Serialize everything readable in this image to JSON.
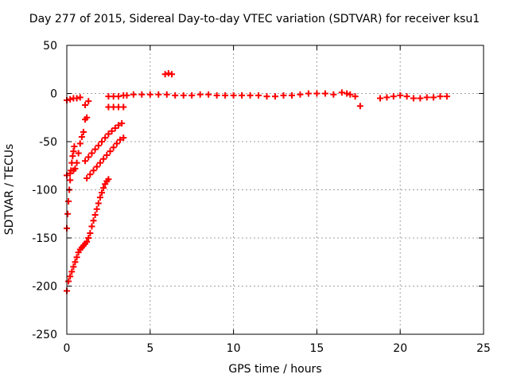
{
  "chart_data": {
    "type": "scatter",
    "title": "Day 277 of 2015, Sidereal Day-to-day VTEC variation (SDTVAR) for receiver ksu1",
    "xlabel": "GPS time / hours",
    "ylabel": "SDTVAR / TECUs",
    "xlim": [
      0,
      25
    ],
    "ylim": [
      -250,
      50
    ],
    "xticks": [
      0,
      5,
      10,
      15,
      20,
      25
    ],
    "yticks": [
      -250,
      -200,
      -150,
      -100,
      -50,
      0,
      50
    ],
    "grid": true,
    "marker": "+",
    "color": "#ff0000",
    "series": [
      {
        "points": [
          [
            0.0,
            -205
          ],
          [
            0.1,
            -195
          ],
          [
            0.2,
            -190
          ],
          [
            0.3,
            -185
          ],
          [
            0.4,
            -180
          ],
          [
            0.5,
            -175
          ],
          [
            0.6,
            -170
          ],
          [
            0.7,
            -165
          ],
          [
            0.8,
            -162
          ],
          [
            0.9,
            -160
          ],
          [
            1.0,
            -158
          ],
          [
            1.1,
            -156
          ],
          [
            1.2,
            -154
          ],
          [
            1.3,
            -150
          ],
          [
            1.4,
            -145
          ],
          [
            1.5,
            -138
          ],
          [
            1.6,
            -132
          ],
          [
            1.7,
            -126
          ],
          [
            1.8,
            -120
          ],
          [
            1.9,
            -114
          ],
          [
            2.0,
            -108
          ],
          [
            2.1,
            -103
          ],
          [
            2.2,
            -98
          ],
          [
            2.3,
            -94
          ],
          [
            2.4,
            -91
          ],
          [
            2.5,
            -89
          ],
          [
            0.0,
            -140
          ],
          [
            0.05,
            -125
          ],
          [
            0.1,
            -112
          ],
          [
            0.15,
            -100
          ],
          [
            0.2,
            -90
          ],
          [
            0.25,
            -80
          ],
          [
            0.3,
            -72
          ],
          [
            0.35,
            -65
          ],
          [
            0.4,
            -60
          ],
          [
            0.45,
            -55
          ],
          [
            0.0,
            -85
          ],
          [
            0.2,
            -83
          ],
          [
            0.4,
            -80
          ],
          [
            0.5,
            -78
          ],
          [
            0.6,
            -72
          ],
          [
            0.7,
            -62
          ],
          [
            0.8,
            -52
          ],
          [
            0.9,
            -45
          ],
          [
            1.0,
            -40
          ],
          [
            1.2,
            -88
          ],
          [
            1.4,
            -84
          ],
          [
            1.6,
            -80
          ],
          [
            1.8,
            -76
          ],
          [
            2.0,
            -72
          ],
          [
            2.2,
            -68
          ],
          [
            2.4,
            -64
          ],
          [
            2.6,
            -60
          ],
          [
            2.8,
            -56
          ],
          [
            3.0,
            -52
          ],
          [
            3.2,
            -48
          ],
          [
            3.4,
            -46
          ],
          [
            1.1,
            -70
          ],
          [
            1.3,
            -66
          ],
          [
            1.5,
            -62
          ],
          [
            1.7,
            -58
          ],
          [
            1.9,
            -54
          ],
          [
            2.1,
            -50
          ],
          [
            2.3,
            -46
          ],
          [
            2.5,
            -42
          ],
          [
            2.7,
            -39
          ],
          [
            2.9,
            -36
          ],
          [
            3.1,
            -33
          ],
          [
            3.3,
            -31
          ],
          [
            0.0,
            -7
          ],
          [
            0.2,
            -6
          ],
          [
            0.4,
            -5
          ],
          [
            0.6,
            -5
          ],
          [
            0.8,
            -4
          ],
          [
            1.1,
            -12
          ],
          [
            1.3,
            -8
          ],
          [
            1.1,
            -27
          ],
          [
            1.2,
            -25
          ],
          [
            2.5,
            -3
          ],
          [
            2.8,
            -3
          ],
          [
            3.1,
            -3
          ],
          [
            3.4,
            -2
          ],
          [
            2.5,
            -14
          ],
          [
            2.8,
            -14
          ],
          [
            3.1,
            -14
          ],
          [
            3.4,
            -14
          ],
          [
            3.6,
            -2
          ],
          [
            4.0,
            -1
          ],
          [
            4.5,
            -1
          ],
          [
            5.0,
            -1
          ],
          [
            5.5,
            -1
          ],
          [
            6.0,
            -1
          ],
          [
            6.5,
            -2
          ],
          [
            7.0,
            -2
          ],
          [
            7.5,
            -2
          ],
          [
            8.0,
            -1
          ],
          [
            8.5,
            -1
          ],
          [
            9.0,
            -2
          ],
          [
            9.5,
            -2
          ],
          [
            10.0,
            -2
          ],
          [
            10.5,
            -2
          ],
          [
            11.0,
            -2
          ],
          [
            11.5,
            -2
          ],
          [
            12.0,
            -3
          ],
          [
            12.5,
            -3
          ],
          [
            13.0,
            -2
          ],
          [
            13.5,
            -2
          ],
          [
            14.0,
            -1
          ],
          [
            14.5,
            0
          ],
          [
            15.0,
            0
          ],
          [
            15.5,
            0
          ],
          [
            16.0,
            -1
          ],
          [
            16.5,
            1
          ],
          [
            16.8,
            0
          ],
          [
            17.0,
            -1
          ],
          [
            17.3,
            -3
          ],
          [
            17.6,
            -13
          ],
          [
            18.8,
            -5
          ],
          [
            19.2,
            -4
          ],
          [
            19.6,
            -3
          ],
          [
            20.0,
            -2
          ],
          [
            20.4,
            -3
          ],
          [
            20.8,
            -5
          ],
          [
            21.2,
            -5
          ],
          [
            21.6,
            -4
          ],
          [
            22.0,
            -4
          ],
          [
            22.4,
            -3
          ],
          [
            22.8,
            -3
          ],
          [
            5.9,
            20
          ],
          [
            6.1,
            21
          ],
          [
            6.3,
            20
          ]
        ]
      }
    ]
  }
}
